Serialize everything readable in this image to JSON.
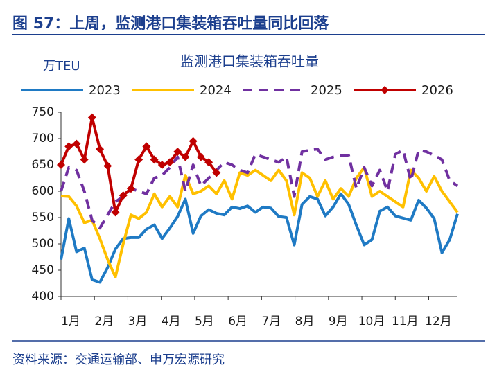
{
  "header": {
    "title": "图 57：上周，监测港口集装箱吞吐量同比回落",
    "source": "资料来源：交通运输部、申万宏源研究"
  },
  "chart_data": {
    "type": "line",
    "title": "监测港口集装箱吞吐量",
    "y_label": "万TEU",
    "x": [
      1,
      2,
      3,
      4,
      5,
      6,
      7,
      8,
      9,
      10,
      11,
      12,
      13,
      14,
      15,
      16,
      17,
      18,
      19,
      20,
      21,
      22,
      23,
      24,
      25,
      26,
      27,
      28,
      29,
      30,
      31,
      32,
      33,
      34,
      35,
      36,
      37,
      38,
      39,
      40,
      41,
      42,
      43,
      44,
      45,
      46,
      47,
      48,
      49,
      50,
      51,
      52
    ],
    "xlim": [
      1,
      52
    ],
    "xticks": [
      {
        "value": 1,
        "label": "1月"
      },
      {
        "value": 5.3,
        "label": "2月"
      },
      {
        "value": 9.6,
        "label": "3月"
      },
      {
        "value": 13.9,
        "label": "4月"
      },
      {
        "value": 18.2,
        "label": "5月"
      },
      {
        "value": 22.5,
        "label": "6月"
      },
      {
        "value": 26.8,
        "label": "7月"
      },
      {
        "value": 31.1,
        "label": "8月"
      },
      {
        "value": 35.4,
        "label": "9月"
      },
      {
        "value": 39.7,
        "label": "10月"
      },
      {
        "value": 44,
        "label": "11月"
      },
      {
        "value": 48.3,
        "label": "12月"
      }
    ],
    "ylim": [
      400,
      750
    ],
    "yticks": [
      400,
      450,
      500,
      550,
      600,
      650,
      700,
      750
    ],
    "series": [
      {
        "name": "2023",
        "color": "#1f7ac4",
        "style": "solid",
        "values": [
          470,
          548,
          485,
          492,
          432,
          427,
          455,
          490,
          510,
          512,
          512,
          528,
          536,
          510,
          530,
          552,
          585,
          520,
          553,
          565,
          558,
          555,
          570,
          567,
          572,
          560,
          570,
          568,
          552,
          550,
          498,
          575,
          590,
          585,
          553,
          570,
          595,
          575,
          535,
          498,
          508,
          562,
          570,
          553,
          549,
          545,
          583,
          568,
          548,
          483,
          508,
          557
        ]
      },
      {
        "name": "2024",
        "color": "#ffc000",
        "style": "solid",
        "values": [
          591,
          590,
          572,
          540,
          545,
          510,
          470,
          437,
          500,
          555,
          548,
          560,
          595,
          570,
          590,
          570,
          630,
          595,
          600,
          610,
          595,
          620,
          585,
          635,
          630,
          640,
          630,
          620,
          640,
          620,
          555,
          635,
          625,
          590,
          620,
          585,
          605,
          590,
          625,
          645,
          590,
          600,
          590,
          580,
          570,
          640,
          625,
          600,
          628,
          600,
          580,
          560
        ]
      },
      {
        "name": "2025",
        "color": "#7030a0",
        "style": "dashed",
        "values": [
          600,
          645,
          640,
          600,
          545,
          530,
          555,
          580,
          590,
          605,
          600,
          595,
          625,
          630,
          645,
          665,
          600,
          650,
          610,
          625,
          640,
          655,
          650,
          640,
          635,
          670,
          665,
          660,
          655,
          665,
          590,
          675,
          678,
          680,
          660,
          665,
          668,
          668,
          605,
          645,
          610,
          640,
          600,
          670,
          678,
          620,
          678,
          675,
          668,
          660,
          620,
          610
        ]
      },
      {
        "name": "2026",
        "color": "#c00000",
        "style": "solid",
        "marker": "diamond",
        "values": [
          650,
          685,
          690,
          660,
          740,
          680,
          648,
          560,
          592,
          605,
          660,
          685,
          660,
          650,
          655,
          675,
          665,
          695,
          665,
          655,
          635,
          null,
          null,
          null,
          null,
          null,
          null,
          null,
          null,
          null,
          null,
          null,
          null,
          null,
          null,
          null,
          null,
          null,
          null,
          null,
          null,
          null,
          null,
          null,
          null,
          null,
          null,
          null,
          null,
          null,
          null,
          null
        ]
      }
    ]
  }
}
